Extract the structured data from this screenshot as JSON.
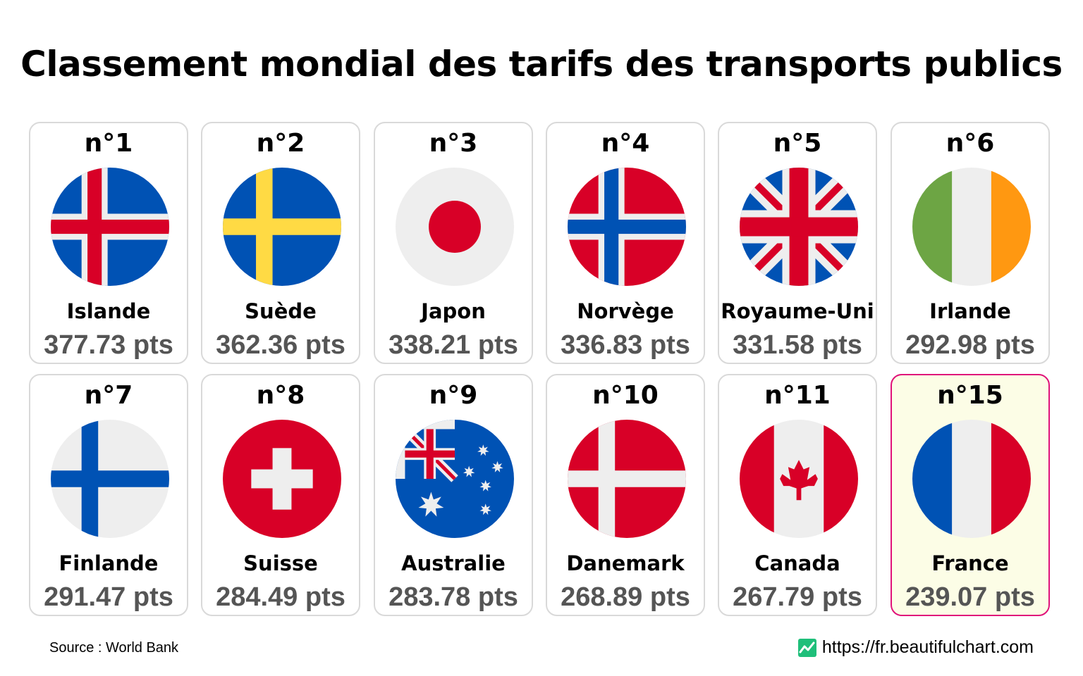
{
  "title": "Classement mondial des tarifs des transports publics",
  "chart_data": {
    "type": "table",
    "unit": "pts",
    "items": [
      {
        "rank": "n°1",
        "country": "Islande",
        "score": "377.73 pts",
        "value": 377.73,
        "flag": "iceland-flag"
      },
      {
        "rank": "n°2",
        "country": "Suède",
        "score": "362.36 pts",
        "value": 362.36,
        "flag": "sweden-flag"
      },
      {
        "rank": "n°3",
        "country": "Japon",
        "score": "338.21 pts",
        "value": 338.21,
        "flag": "japan-flag"
      },
      {
        "rank": "n°4",
        "country": "Norvège",
        "score": "336.83 pts",
        "value": 336.83,
        "flag": "norway-flag"
      },
      {
        "rank": "n°5",
        "country": "Royaume-Uni",
        "score": "331.58 pts",
        "value": 331.58,
        "flag": "uk-flag"
      },
      {
        "rank": "n°6",
        "country": "Irlande",
        "score": "292.98 pts",
        "value": 292.98,
        "flag": "ireland-flag"
      },
      {
        "rank": "n°7",
        "country": "Finlande",
        "score": "291.47 pts",
        "value": 291.47,
        "flag": "finland-flag"
      },
      {
        "rank": "n°8",
        "country": "Suisse",
        "score": "284.49 pts",
        "value": 284.49,
        "flag": "switzerland-flag"
      },
      {
        "rank": "n°9",
        "country": "Australie",
        "score": "283.78 pts",
        "value": 283.78,
        "flag": "australia-flag"
      },
      {
        "rank": "n°10",
        "country": "Danemark",
        "score": "268.89 pts",
        "value": 268.89,
        "flag": "denmark-flag"
      },
      {
        "rank": "n°11",
        "country": "Canada",
        "score": "267.79 pts",
        "value": 267.79,
        "flag": "canada-flag"
      },
      {
        "rank": "n°15",
        "country": "France",
        "score": "239.07 pts",
        "value": 239.07,
        "flag": "france-flag",
        "highlighted": true
      }
    ]
  },
  "colors": {
    "highlight_border": "#e0137a",
    "highlight_background": "#fcfde6",
    "score_text": "#555555"
  },
  "footer": {
    "source": "Source : World Bank",
    "credit": "https://fr.beautifulchart.com",
    "logo_icon": "trend-chart-icon"
  }
}
